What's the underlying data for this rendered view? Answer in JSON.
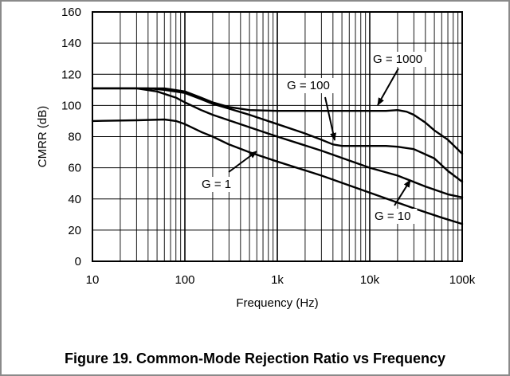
{
  "caption": "Figure 19. Common-Mode Rejection Ratio vs Frequency",
  "chart_data": {
    "type": "line",
    "title": "Figure 19. Common-Mode Rejection Ratio vs Frequency",
    "xlabel": "Frequency (Hz)",
    "ylabel": "CMRR (dB)",
    "xscale": "log",
    "xlim": [
      10,
      100000
    ],
    "ylim": [
      0,
      160
    ],
    "grid": true,
    "xticks": [
      10,
      100,
      1000,
      10000,
      100000
    ],
    "xtick_labels": [
      "10",
      "100",
      "1k",
      "10k",
      "100k"
    ],
    "yticks": [
      0,
      20,
      40,
      60,
      80,
      100,
      120,
      140,
      160
    ],
    "ytick_labels": [
      "0",
      "20",
      "40",
      "60",
      "80",
      "100",
      "120",
      "140",
      "160"
    ],
    "line_color": "#000000",
    "series": [
      {
        "name": "G = 1",
        "x": [
          10,
          30,
          60,
          80,
          100,
          150,
          200,
          300,
          500,
          1000,
          3000,
          10000,
          30000,
          60000,
          100000
        ],
        "y": [
          90,
          90.5,
          91,
          90,
          88,
          83,
          80,
          75,
          70,
          64,
          55,
          44,
          34,
          28,
          24
        ]
      },
      {
        "name": "G = 10",
        "x": [
          10,
          30,
          50,
          80,
          100,
          150,
          200,
          500,
          1000,
          3000,
          10000,
          20000,
          40000,
          70000,
          100000
        ],
        "y": [
          111,
          111,
          109,
          105,
          102,
          97,
          94,
          86,
          80,
          71,
          60,
          55,
          48,
          43,
          41
        ]
      },
      {
        "name": "G = 100",
        "x": [
          10,
          40,
          60,
          100,
          150,
          200,
          300,
          500,
          1000,
          2000,
          3000,
          4000,
          5000,
          10000,
          15000,
          20000,
          30000,
          50000,
          70000,
          100000
        ],
        "y": [
          111,
          111,
          110,
          108,
          104,
          101,
          98,
          94,
          88,
          82,
          78,
          75,
          74,
          74,
          74,
          73.5,
          72,
          66,
          58,
          51
        ]
      },
      {
        "name": "G = 1000",
        "x": [
          10,
          40,
          60,
          100,
          150,
          200,
          300,
          500,
          1000,
          2000,
          5000,
          10000,
          15000,
          20000,
          25000,
          30000,
          40000,
          50000,
          70000,
          100000
        ],
        "y": [
          111,
          111,
          111,
          109,
          105,
          102,
          99,
          97,
          96.5,
          96.5,
          96.5,
          96.5,
          96.5,
          97,
          96,
          94,
          89,
          84,
          78,
          69
        ]
      }
    ],
    "annotations": [
      {
        "text": "G = 1",
        "series": "G = 1"
      },
      {
        "text": "G = 10",
        "series": "G = 10"
      },
      {
        "text": "G = 100",
        "series": "G = 100"
      },
      {
        "text": "G = 1000",
        "series": "G = 1000"
      }
    ]
  }
}
